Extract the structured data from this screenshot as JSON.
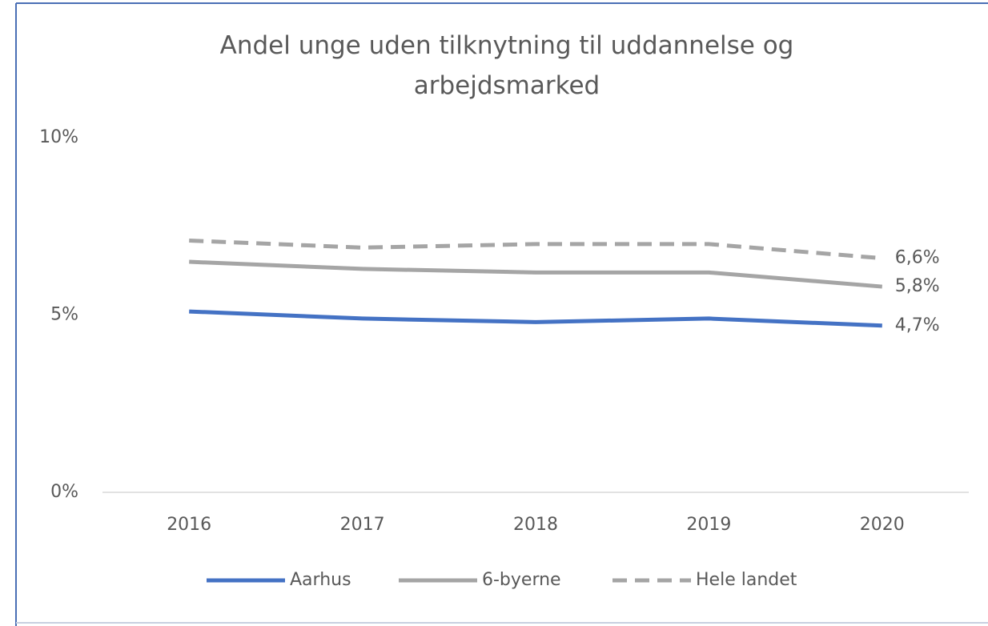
{
  "chart_data": {
    "type": "line",
    "title": "Andel unge uden tilknytning til uddannelse og arbejdsmarked",
    "categories": [
      "2016",
      "2017",
      "2018",
      "2019",
      "2020"
    ],
    "series": [
      {
        "name": "Aarhus",
        "color": "#4472c4",
        "dashed": false,
        "values": [
          5.1,
          4.9,
          4.8,
          4.9,
          4.7
        ],
        "value_labels": [
          null,
          null,
          null,
          null,
          "4,7%"
        ]
      },
      {
        "name": "6-byerne",
        "color": "#a5a5a5",
        "dashed": false,
        "values": [
          6.5,
          6.3,
          6.2,
          6.2,
          5.8
        ],
        "value_labels": [
          null,
          null,
          null,
          null,
          "5,8%"
        ]
      },
      {
        "name": "Hele landet",
        "color": "#a5a5a5",
        "dashed": true,
        "values": [
          7.1,
          6.9,
          7.0,
          7.0,
          6.6
        ],
        "value_labels": [
          null,
          null,
          null,
          null,
          "6,6%"
        ]
      }
    ],
    "ylim": [
      0,
      10
    ],
    "yticks": [
      {
        "value": 0,
        "label": "0%"
      },
      {
        "value": 5,
        "label": "5%"
      },
      {
        "value": 10,
        "label": "10%"
      }
    ],
    "grid": false,
    "legend": "bottom"
  }
}
